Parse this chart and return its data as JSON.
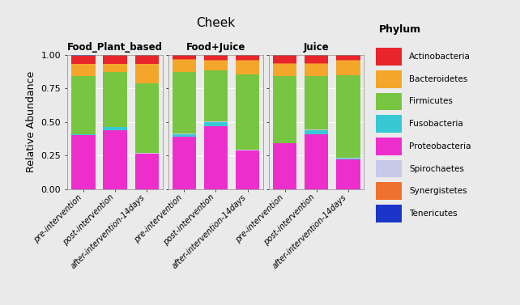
{
  "title": "Cheek",
  "ylabel": "Relative Abundance",
  "groups": [
    "Food_Plant_based",
    "Food+Juice",
    "Juice"
  ],
  "timepoints": [
    "pre-intervention",
    "post-intervention",
    "after-intervention-14days"
  ],
  "colors": {
    "Actinobacteria": "#E8252A",
    "Bacteroidetes": "#F4A62A",
    "Firmicutes": "#77C540",
    "Fusobacteria": "#37C8D4",
    "Proteobacteria": "#EE2ECC",
    "Spirochaetes": "#C8C8E8",
    "Synergistetes": "#F07030",
    "Tenericutes": "#1A35C8"
  },
  "stack_order": [
    "Proteobacteria",
    "Fusobacteria",
    "Spirochaetes",
    "Firmicutes",
    "Bacteroidetes",
    "Synergistetes",
    "Actinobacteria",
    "Tenericutes"
  ],
  "legend_order": [
    "Actinobacteria",
    "Bacteroidetes",
    "Firmicutes",
    "Fusobacteria",
    "Proteobacteria",
    "Spirochaetes",
    "Synergistetes",
    "Tenericutes"
  ],
  "data": {
    "Food_Plant_based": {
      "pre-intervention": {
        "Proteobacteria": 0.4,
        "Fusobacteria": 0.01,
        "Firmicutes": 0.43,
        "Bacteroidetes": 0.09,
        "Actinobacteria": 0.06,
        "Spirochaetes": 0.0,
        "Synergistetes": 0.005,
        "Tenericutes": 0.005
      },
      "post-intervention": {
        "Proteobacteria": 0.44,
        "Fusobacteria": 0.02,
        "Firmicutes": 0.41,
        "Bacteroidetes": 0.06,
        "Actinobacteria": 0.065,
        "Spirochaetes": 0.0,
        "Synergistetes": 0.005,
        "Tenericutes": 0.0
      },
      "after-intervention-14days": {
        "Proteobacteria": 0.265,
        "Fusobacteria": 0.0,
        "Firmicutes": 0.52,
        "Bacteroidetes": 0.14,
        "Actinobacteria": 0.065,
        "Spirochaetes": 0.005,
        "Synergistetes": 0.005,
        "Tenericutes": 0.0
      }
    },
    "Food+Juice": {
      "pre-intervention": {
        "Proteobacteria": 0.39,
        "Fusobacteria": 0.02,
        "Firmicutes": 0.46,
        "Bacteroidetes": 0.09,
        "Actinobacteria": 0.03,
        "Spirochaetes": 0.005,
        "Synergistetes": 0.005,
        "Tenericutes": 0.0
      },
      "post-intervention": {
        "Proteobacteria": 0.47,
        "Fusobacteria": 0.03,
        "Firmicutes": 0.38,
        "Bacteroidetes": 0.07,
        "Actinobacteria": 0.04,
        "Spirochaetes": 0.005,
        "Synergistetes": 0.005,
        "Tenericutes": 0.0
      },
      "after-intervention-14days": {
        "Proteobacteria": 0.285,
        "Fusobacteria": 0.005,
        "Firmicutes": 0.56,
        "Bacteroidetes": 0.1,
        "Actinobacteria": 0.04,
        "Spirochaetes": 0.005,
        "Synergistetes": 0.005,
        "Tenericutes": 0.0
      }
    },
    "Juice": {
      "pre-intervention": {
        "Proteobacteria": 0.34,
        "Fusobacteria": 0.0,
        "Firmicutes": 0.5,
        "Bacteroidetes": 0.09,
        "Actinobacteria": 0.06,
        "Spirochaetes": 0.005,
        "Synergistetes": 0.005,
        "Tenericutes": 0.0
      },
      "post-intervention": {
        "Proteobacteria": 0.41,
        "Fusobacteria": 0.03,
        "Firmicutes": 0.4,
        "Bacteroidetes": 0.09,
        "Actinobacteria": 0.06,
        "Spirochaetes": 0.005,
        "Synergistetes": 0.005,
        "Tenericutes": 0.0
      },
      "after-intervention-14days": {
        "Proteobacteria": 0.22,
        "Fusobacteria": 0.01,
        "Firmicutes": 0.615,
        "Bacteroidetes": 0.105,
        "Actinobacteria": 0.04,
        "Spirochaetes": 0.005,
        "Synergistetes": 0.005,
        "Tenericutes": 0.0
      }
    }
  },
  "ylim": [
    0,
    1.0
  ],
  "yticks": [
    0.0,
    0.25,
    0.5,
    0.75,
    1.0
  ],
  "bg_color": "#EAEAEA",
  "panel_bg": "#EAEAEA",
  "strip_bg": "#C8C8C8",
  "grid_color": "#FFFFFF"
}
